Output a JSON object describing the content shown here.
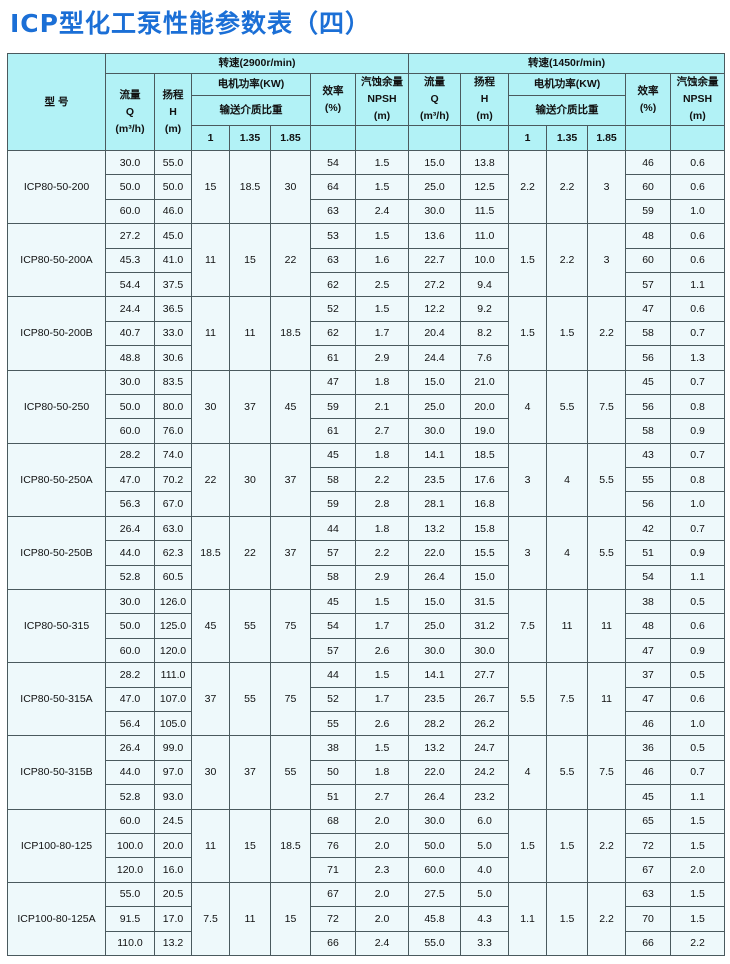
{
  "title": "ICP型化工泵性能参数表（四）",
  "header": {
    "model": "型  号",
    "speed_high": "转速(2900r/min)",
    "speed_low": "转速(1450r/min)",
    "flow": [
      "流量",
      "Q",
      "(m³/h)"
    ],
    "head": [
      "扬程",
      "H",
      "(m)"
    ],
    "motor_power": "电机功率(KW)",
    "medium_density": "输送介质比重",
    "densities": [
      "1",
      "1.35",
      "1.85"
    ],
    "efficiency": [
      "效率",
      "(%)"
    ],
    "npsh": [
      "汽蚀余量",
      "NPSH",
      "(m)"
    ]
  },
  "rows": [
    {
      "model": "ICP80-50-200",
      "p_high": [
        "15",
        "18.5",
        "30"
      ],
      "p_low": [
        "2.2",
        "2.2",
        "3"
      ],
      "points": [
        [
          "30.0",
          "55.0",
          "54",
          "1.5",
          "15.0",
          "13.8",
          "46",
          "0.6"
        ],
        [
          "50.0",
          "50.0",
          "64",
          "1.5",
          "25.0",
          "12.5",
          "60",
          "0.6"
        ],
        [
          "60.0",
          "46.0",
          "63",
          "2.4",
          "30.0",
          "11.5",
          "59",
          "1.0"
        ]
      ]
    },
    {
      "model": "ICP80-50-200A",
      "p_high": [
        "11",
        "15",
        "22"
      ],
      "p_low": [
        "1.5",
        "2.2",
        "3"
      ],
      "points": [
        [
          "27.2",
          "45.0",
          "53",
          "1.5",
          "13.6",
          "11.0",
          "48",
          "0.6"
        ],
        [
          "45.3",
          "41.0",
          "63",
          "1.6",
          "22.7",
          "10.0",
          "60",
          "0.6"
        ],
        [
          "54.4",
          "37.5",
          "62",
          "2.5",
          "27.2",
          "9.4",
          "57",
          "1.1"
        ]
      ]
    },
    {
      "model": "ICP80-50-200B",
      "p_high": [
        "11",
        "11",
        "18.5"
      ],
      "p_low": [
        "1.5",
        "1.5",
        "2.2"
      ],
      "points": [
        [
          "24.4",
          "36.5",
          "52",
          "1.5",
          "12.2",
          "9.2",
          "47",
          "0.6"
        ],
        [
          "40.7",
          "33.0",
          "62",
          "1.7",
          "20.4",
          "8.2",
          "58",
          "0.7"
        ],
        [
          "48.8",
          "30.6",
          "61",
          "2.9",
          "24.4",
          "7.6",
          "56",
          "1.3"
        ]
      ]
    },
    {
      "model": "ICP80-50-250",
      "p_high": [
        "30",
        "37",
        "45"
      ],
      "p_low": [
        "4",
        "5.5",
        "7.5"
      ],
      "points": [
        [
          "30.0",
          "83.5",
          "47",
          "1.8",
          "15.0",
          "21.0",
          "45",
          "0.7"
        ],
        [
          "50.0",
          "80.0",
          "59",
          "2.1",
          "25.0",
          "20.0",
          "56",
          "0.8"
        ],
        [
          "60.0",
          "76.0",
          "61",
          "2.7",
          "30.0",
          "19.0",
          "58",
          "0.9"
        ]
      ]
    },
    {
      "model": "ICP80-50-250A",
      "p_high": [
        "22",
        "30",
        "37"
      ],
      "p_low": [
        "3",
        "4",
        "5.5"
      ],
      "points": [
        [
          "28.2",
          "74.0",
          "45",
          "1.8",
          "14.1",
          "18.5",
          "43",
          "0.7"
        ],
        [
          "47.0",
          "70.2",
          "58",
          "2.2",
          "23.5",
          "17.6",
          "55",
          "0.8"
        ],
        [
          "56.3",
          "67.0",
          "59",
          "2.8",
          "28.1",
          "16.8",
          "56",
          "1.0"
        ]
      ]
    },
    {
      "model": "ICP80-50-250B",
      "p_high": [
        "18.5",
        "22",
        "37"
      ],
      "p_low": [
        "3",
        "4",
        "5.5"
      ],
      "points": [
        [
          "26.4",
          "63.0",
          "44",
          "1.8",
          "13.2",
          "15.8",
          "42",
          "0.7"
        ],
        [
          "44.0",
          "62.3",
          "57",
          "2.2",
          "22.0",
          "15.5",
          "51",
          "0.9"
        ],
        [
          "52.8",
          "60.5",
          "58",
          "2.9",
          "26.4",
          "15.0",
          "54",
          "1.1"
        ]
      ]
    },
    {
      "model": "ICP80-50-315",
      "p_high": [
        "45",
        "55",
        "75"
      ],
      "p_low": [
        "7.5",
        "11",
        "11"
      ],
      "points": [
        [
          "30.0",
          "126.0",
          "45",
          "1.5",
          "15.0",
          "31.5",
          "38",
          "0.5"
        ],
        [
          "50.0",
          "125.0",
          "54",
          "1.7",
          "25.0",
          "31.2",
          "48",
          "0.6"
        ],
        [
          "60.0",
          "120.0",
          "57",
          "2.6",
          "30.0",
          "30.0",
          "47",
          "0.9"
        ]
      ]
    },
    {
      "model": "ICP80-50-315A",
      "p_high": [
        "37",
        "55",
        "75"
      ],
      "p_low": [
        "5.5",
        "7.5",
        "11"
      ],
      "points": [
        [
          "28.2",
          "111.0",
          "44",
          "1.5",
          "14.1",
          "27.7",
          "37",
          "0.5"
        ],
        [
          "47.0",
          "107.0",
          "52",
          "1.7",
          "23.5",
          "26.7",
          "47",
          "0.6"
        ],
        [
          "56.4",
          "105.0",
          "55",
          "2.6",
          "28.2",
          "26.2",
          "46",
          "1.0"
        ]
      ]
    },
    {
      "model": "ICP80-50-315B",
      "p_high": [
        "30",
        "37",
        "55"
      ],
      "p_low": [
        "4",
        "5.5",
        "7.5"
      ],
      "points": [
        [
          "26.4",
          "99.0",
          "38",
          "1.5",
          "13.2",
          "24.7",
          "36",
          "0.5"
        ],
        [
          "44.0",
          "97.0",
          "50",
          "1.8",
          "22.0",
          "24.2",
          "46",
          "0.7"
        ],
        [
          "52.8",
          "93.0",
          "51",
          "2.7",
          "26.4",
          "23.2",
          "45",
          "1.1"
        ]
      ]
    },
    {
      "model": "ICP100-80-125",
      "p_high": [
        "11",
        "15",
        "18.5"
      ],
      "p_low": [
        "1.5",
        "1.5",
        "2.2"
      ],
      "points": [
        [
          "60.0",
          "24.5",
          "68",
          "2.0",
          "30.0",
          "6.0",
          "65",
          "1.5"
        ],
        [
          "100.0",
          "20.0",
          "76",
          "2.0",
          "50.0",
          "5.0",
          "72",
          "1.5"
        ],
        [
          "120.0",
          "16.0",
          "71",
          "2.3",
          "60.0",
          "4.0",
          "67",
          "2.0"
        ]
      ]
    },
    {
      "model": "ICP100-80-125A",
      "p_high": [
        "7.5",
        "11",
        "15"
      ],
      "p_low": [
        "1.1",
        "1.5",
        "2.2"
      ],
      "points": [
        [
          "55.0",
          "20.5",
          "67",
          "2.0",
          "27.5",
          "5.0",
          "63",
          "1.5"
        ],
        [
          "91.5",
          "17.0",
          "72",
          "2.0",
          "45.8",
          "4.3",
          "70",
          "1.5"
        ],
        [
          "110.0",
          "13.2",
          "66",
          "2.4",
          "55.0",
          "3.3",
          "66",
          "2.2"
        ]
      ]
    }
  ]
}
